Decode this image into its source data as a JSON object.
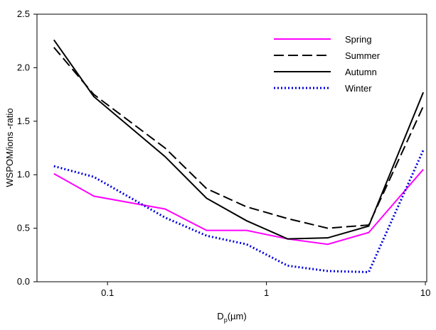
{
  "chart_data": {
    "type": "line",
    "x_label": {
      "main": "D",
      "sub": "p",
      "unit": "(µm)"
    },
    "y_label": "WSPOM/ions -ratio",
    "x": [
      0.046,
      0.082,
      0.23,
      0.42,
      0.75,
      1.36,
      2.43,
      4.4,
      9.7
    ],
    "xlog": true,
    "xlim": [
      0.036,
      10.2
    ],
    "xticks": [
      0.1,
      1,
      10
    ],
    "ylim": [
      0,
      2.5
    ],
    "yticks": [
      {
        "value": 0,
        "label": "0.0"
      },
      0.5,
      {
        "value": 1,
        "label": "1.0"
      },
      1.5,
      {
        "value": 2,
        "label": "2.0"
      },
      2.5
    ],
    "legend": "upper-right",
    "series": [
      {
        "name": "Spring",
        "color": "#ff00ff",
        "dash": "solid",
        "values": [
          1.01,
          0.8,
          0.68,
          0.48,
          0.48,
          0.4,
          0.35,
          0.46,
          1.05
        ]
      },
      {
        "name": "Summer",
        "color": "#000000",
        "dash": "dashed",
        "values": [
          2.19,
          1.75,
          1.25,
          0.87,
          0.7,
          0.59,
          0.5,
          0.53,
          1.64
        ]
      },
      {
        "name": "Autumn",
        "color": "#000000",
        "dash": "solid",
        "values": [
          2.26,
          1.73,
          1.17,
          0.78,
          0.57,
          0.4,
          0.41,
          0.52,
          1.77
        ]
      },
      {
        "name": "Winter",
        "color": "#0000dd",
        "dash": "dotted",
        "values": [
          1.08,
          0.98,
          0.6,
          0.43,
          0.35,
          0.15,
          0.1,
          0.09,
          1.23
        ]
      }
    ]
  }
}
